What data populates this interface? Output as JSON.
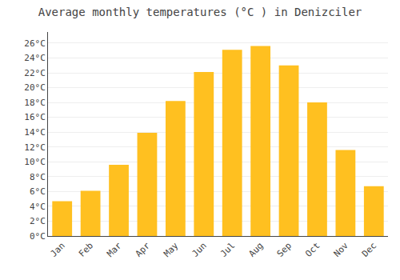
{
  "chart_data": {
    "type": "bar",
    "title": "Average monthly temperatures (°C ) in Denizciler",
    "categories": [
      "Jan",
      "Feb",
      "Mar",
      "Apr",
      "May",
      "Jun",
      "Jul",
      "Aug",
      "Sep",
      "Oct",
      "Nov",
      "Dec"
    ],
    "values": [
      4.7,
      6.1,
      9.6,
      13.9,
      18.2,
      22.1,
      25.1,
      25.6,
      23.0,
      18.0,
      11.6,
      6.7
    ],
    "color": "#FFC020",
    "ylim": [
      0,
      27.5
    ],
    "yticks": [
      {
        "value": 0,
        "label": "0°C"
      },
      {
        "value": 2,
        "label": "2°C"
      },
      {
        "value": 4,
        "label": "4°C"
      },
      {
        "value": 6,
        "label": "6°C"
      },
      {
        "value": 8,
        "label": "8°C"
      },
      {
        "value": 10,
        "label": "10°C"
      },
      {
        "value": 12,
        "label": "12°C"
      },
      {
        "value": 14,
        "label": "14°C"
      },
      {
        "value": 16,
        "label": "16°C"
      },
      {
        "value": 18,
        "label": "18°C"
      },
      {
        "value": 20,
        "label": "20°C"
      },
      {
        "value": 22,
        "label": "22°C"
      },
      {
        "value": 24,
        "label": "24°C"
      },
      {
        "value": 26,
        "label": "26°C"
      }
    ],
    "grid": true
  }
}
